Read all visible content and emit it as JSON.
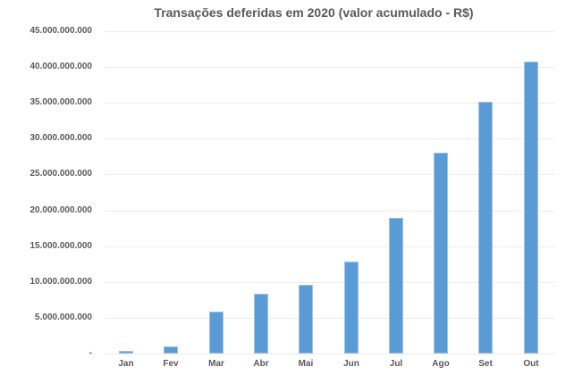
{
  "chart_data": {
    "type": "bar",
    "title": "Transações deferidas em 2020 (valor acumulado - R$)",
    "xlabel": "",
    "ylabel": "",
    "categories": [
      "Jan",
      "Fev",
      "Mar",
      "Abr",
      "Mai",
      "Jun",
      "Jul",
      "Ago",
      "Set",
      "Out"
    ],
    "values": [
      350000000,
      950000000,
      5900000000,
      8400000000,
      9600000000,
      12900000000,
      18900000000,
      28000000000,
      35200000000,
      40700000000
    ],
    "ylim": [
      0,
      45000000000
    ],
    "yticks": [
      {
        "value": 45000000000,
        "label": "45.000.000.000"
      },
      {
        "value": 40000000000,
        "label": "40.000.000.000"
      },
      {
        "value": 35000000000,
        "label": "35.000.000.000"
      },
      {
        "value": 30000000000,
        "label": "30.000.000.000"
      },
      {
        "value": 25000000000,
        "label": "25.000.000.000"
      },
      {
        "value": 20000000000,
        "label": "20.000.000.000"
      },
      {
        "value": 15000000000,
        "label": "15.000.000.000"
      },
      {
        "value": 10000000000,
        "label": "10.000.000.000"
      },
      {
        "value": 5000000000,
        "label": "5.000.000.000"
      },
      {
        "value": 0,
        "label": "-"
      }
    ],
    "grid": true,
    "legend": null,
    "bar_color": "#5b9bd5"
  }
}
